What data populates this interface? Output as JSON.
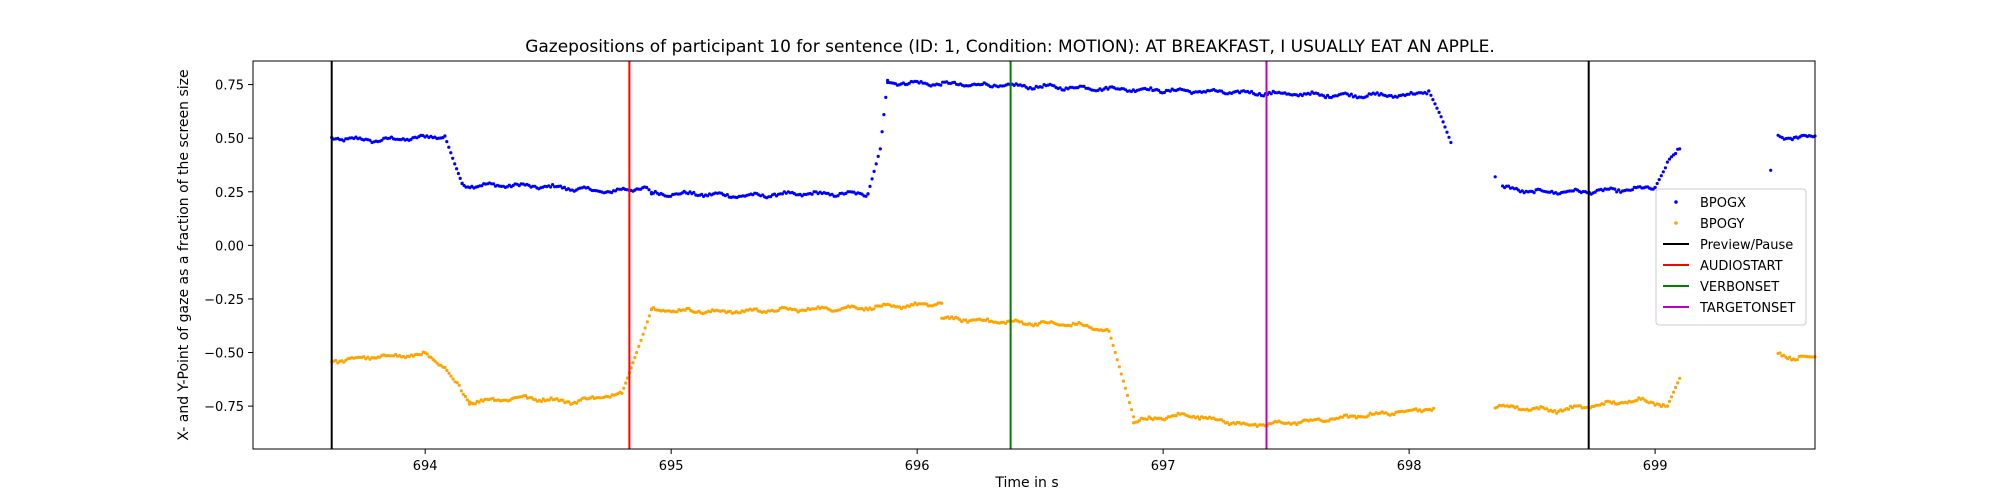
{
  "chart_data": {
    "type": "scatter",
    "title": "Gazepositions of participant 10 for sentence (ID: 1, Condition: MOTION):   AT BREAKFAST, I USUALLY EAT AN APPLE.",
    "xlabel": "Time in s",
    "ylabel": "X- and Y-Point of gaze as a fraction of the screen size",
    "xlim": [
      693.3,
      699.65
    ],
    "ylim": [
      -0.95,
      0.86
    ],
    "xticks": [
      694,
      695,
      696,
      697,
      698,
      699
    ],
    "yticks": [
      0.75,
      0.5,
      0.25,
      0.0,
      -0.25,
      -0.5,
      -0.75
    ],
    "xtick_labels": [
      "694",
      "695",
      "696",
      "697",
      "698",
      "699"
    ],
    "ytick_labels": [
      "0.75",
      "0.50",
      "0.25",
      "0.00",
      "−0.25",
      "−0.50",
      "−0.75"
    ],
    "grid": false,
    "legend_position": "center-right",
    "series": [
      {
        "name": "BPOGX",
        "color": "#0000ff",
        "segments": [
          {
            "x": [
              693.62,
              693.8,
              693.95,
              694.08
            ],
            "y": [
              0.5,
              0.49,
              0.5,
              0.51
            ]
          },
          {
            "x": [
              694.08,
              694.12,
              694.15
            ],
            "y": [
              0.51,
              0.38,
              0.29
            ]
          },
          {
            "x": [
              694.15,
              694.35,
              694.55,
              694.75,
              694.9
            ],
            "y": [
              0.28,
              0.28,
              0.27,
              0.25,
              0.27
            ]
          },
          {
            "x": [
              694.9,
              694.92
            ],
            "y": [
              0.27,
              0.24
            ]
          },
          {
            "x": [
              694.92,
              695.1,
              695.3,
              695.5,
              695.8
            ],
            "y": [
              0.24,
              0.24,
              0.23,
              0.24,
              0.24
            ]
          },
          {
            "x": [
              695.8,
              695.85,
              695.88
            ],
            "y": [
              0.24,
              0.45,
              0.77
            ]
          },
          {
            "x": [
              695.88,
              696.2,
              696.5,
              696.8,
              697.1,
              697.4,
              697.7,
              698.0,
              698.08
            ],
            "y": [
              0.76,
              0.75,
              0.74,
              0.73,
              0.72,
              0.71,
              0.7,
              0.7,
              0.72
            ]
          },
          {
            "x": [
              698.08,
              698.13,
              698.17
            ],
            "y": [
              0.72,
              0.6,
              0.48
            ]
          },
          {
            "x": [
              698.38,
              698.5,
              698.7,
              698.9,
              699.0
            ],
            "y": [
              0.27,
              0.25,
              0.25,
              0.26,
              0.27
            ]
          },
          {
            "x": [
              699.0,
              699.05,
              699.1
            ],
            "y": [
              0.27,
              0.38,
              0.45
            ]
          },
          {
            "x": [
              699.5,
              699.55,
              699.65
            ],
            "y": [
              0.51,
              0.5,
              0.51
            ]
          }
        ],
        "points": [
          {
            "x": 698.35,
            "y": 0.32
          },
          {
            "x": 699.47,
            "y": 0.35
          }
        ]
      },
      {
        "name": "BPOGY",
        "color": "#ffa500",
        "segments": [
          {
            "x": [
              693.62,
              693.8,
              694.0,
              694.08
            ],
            "y": [
              -0.54,
              -0.52,
              -0.51,
              -0.57
            ]
          },
          {
            "x": [
              694.08,
              694.13,
              694.18
            ],
            "y": [
              -0.57,
              -0.65,
              -0.73
            ]
          },
          {
            "x": [
              694.18,
              694.4,
              694.6,
              694.8
            ],
            "y": [
              -0.73,
              -0.71,
              -0.73,
              -0.69
            ]
          },
          {
            "x": [
              694.8,
              694.86,
              694.92
            ],
            "y": [
              -0.69,
              -0.5,
              -0.3
            ]
          },
          {
            "x": [
              694.92,
              695.2,
              695.5,
              695.8,
              696.0,
              696.1
            ],
            "y": [
              -0.3,
              -0.31,
              -0.3,
              -0.29,
              -0.28,
              -0.27
            ]
          },
          {
            "x": [
              696.1,
              696.4,
              696.65,
              696.78
            ],
            "y": [
              -0.34,
              -0.36,
              -0.37,
              -0.4
            ]
          },
          {
            "x": [
              696.78,
              696.83,
              696.88
            ],
            "y": [
              -0.4,
              -0.6,
              -0.8
            ]
          },
          {
            "x": [
              696.88,
              697.1,
              697.35,
              697.6,
              697.85,
              698.1
            ],
            "y": [
              -0.82,
              -0.79,
              -0.84,
              -0.82,
              -0.79,
              -0.76
            ]
          },
          {
            "x": [
              698.35,
              698.6,
              698.8,
              698.95,
              699.05
            ],
            "y": [
              -0.75,
              -0.77,
              -0.74,
              -0.72,
              -0.75
            ]
          },
          {
            "x": [
              699.05,
              699.1
            ],
            "y": [
              -0.75,
              -0.62
            ]
          },
          {
            "x": [
              699.5,
              699.57,
              699.65
            ],
            "y": [
              -0.5,
              -0.53,
              -0.52
            ]
          }
        ],
        "points": []
      }
    ],
    "vlines": [
      {
        "name": "Preview/Pause",
        "color": "#000000",
        "x": 693.62
      },
      {
        "name": "AUDIOSTART",
        "color": "#ff0000",
        "x": 694.83
      },
      {
        "name": "VERBONSET",
        "color": "#008000",
        "x": 696.38
      },
      {
        "name": "TARGETONSET",
        "color": "#bf00bf",
        "x": 697.42
      },
      {
        "name": "Preview/Pause",
        "color": "#000000",
        "x": 698.73
      }
    ],
    "legend": [
      {
        "label": "BPOGX",
        "kind": "marker",
        "color": "#0000ff"
      },
      {
        "label": "BPOGY",
        "kind": "marker",
        "color": "#ffa500"
      },
      {
        "label": "Preview/Pause",
        "kind": "line",
        "color": "#000000"
      },
      {
        "label": "AUDIOSTART",
        "kind": "line",
        "color": "#ff0000"
      },
      {
        "label": "VERBONSET",
        "kind": "line",
        "color": "#008000"
      },
      {
        "label": "TARGETONSET",
        "kind": "line",
        "color": "#bf00bf"
      }
    ]
  }
}
